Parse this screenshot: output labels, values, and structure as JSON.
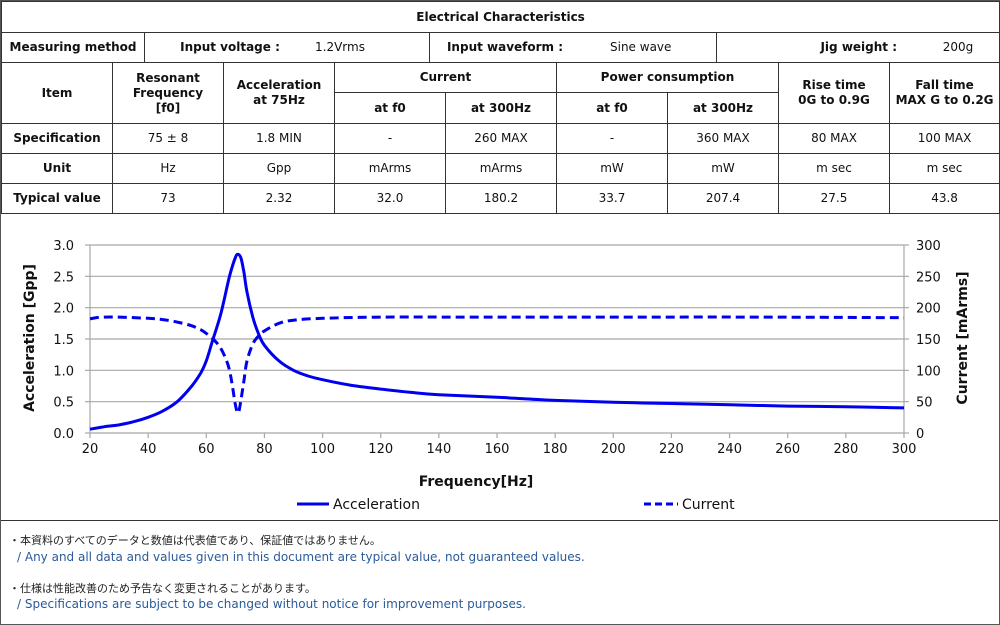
{
  "table": {
    "title": "Electrical Characteristics",
    "measuring_method": {
      "label": "Measuring method",
      "input_voltage_label": "Input voltage :",
      "input_voltage_value": "1.2Vrms",
      "input_waveform_label": "Input waveform :",
      "input_waveform_value": "Sine wave",
      "jig_weight_label": "Jig weight :",
      "jig_weight_value": "200g"
    },
    "headers": {
      "item": "Item",
      "resonant_frequency": [
        "Resonant",
        "Frequency",
        "[f0]"
      ],
      "acceleration": [
        "Acceleration",
        "at 75Hz"
      ],
      "current": "Current",
      "power": "Power consumption",
      "rise_time": [
        "Rise time",
        "0G to 0.9G"
      ],
      "fall_time": [
        "Fall time",
        "MAX G to 0.2G"
      ],
      "sub": [
        "at f0",
        "at 300Hz",
        "at f0",
        "at 300Hz"
      ]
    },
    "rows": [
      {
        "label": "Specification",
        "cells": [
          "75 ± 8",
          "1.8 MIN",
          "-",
          "260 MAX",
          "-",
          "360 MAX",
          "80 MAX",
          "100 MAX"
        ]
      },
      {
        "label": "Unit",
        "cells": [
          "Hz",
          "Gpp",
          "mArms",
          "mArms",
          "mW",
          "mW",
          "m sec",
          "m sec"
        ]
      },
      {
        "label": "Typical value",
        "cells": [
          "73",
          "2.32",
          "32.0",
          "180.2",
          "33.7",
          "207.4",
          "27.5",
          "43.8"
        ]
      }
    ]
  },
  "chart_data": {
    "type": "line",
    "title": "",
    "xlabel": "Frequency[Hz]",
    "ylabel": "Acceleration [Gpp]",
    "y2label": "Current [mArms]",
    "xlim": [
      20,
      300
    ],
    "ylim": [
      0,
      3.0
    ],
    "y2lim": [
      0,
      300
    ],
    "xticks": [
      "20",
      "40",
      "60",
      "80",
      "100",
      "120",
      "140",
      "160",
      "180",
      "200",
      "220",
      "240",
      "260",
      "280",
      "300"
    ],
    "yticks": [
      "0.0",
      "0.5",
      "1.0",
      "1.5",
      "2.0",
      "2.5",
      "3.0"
    ],
    "y2ticks": [
      "0",
      "50",
      "100",
      "150",
      "200",
      "250",
      "300"
    ],
    "grid": true,
    "legend_position": "bottom",
    "series": [
      {
        "name": "Acceleration",
        "axis": "left",
        "style": "solid",
        "color": "#0000ee",
        "x": [
          20,
          25,
          30,
          35,
          40,
          45,
          50,
          55,
          58,
          60,
          62,
          65,
          68,
          70,
          71,
          72,
          73,
          74,
          76,
          78,
          80,
          85,
          90,
          95,
          100,
          110,
          120,
          130,
          140,
          160,
          180,
          200,
          220,
          240,
          260,
          280,
          300
        ],
        "y": [
          0.06,
          0.1,
          0.13,
          0.18,
          0.25,
          0.35,
          0.5,
          0.75,
          0.95,
          1.15,
          1.45,
          1.9,
          2.5,
          2.8,
          2.85,
          2.78,
          2.55,
          2.25,
          1.85,
          1.58,
          1.4,
          1.15,
          1.0,
          0.91,
          0.85,
          0.76,
          0.7,
          0.65,
          0.61,
          0.57,
          0.52,
          0.49,
          0.47,
          0.45,
          0.43,
          0.42,
          0.4
        ]
      },
      {
        "name": "Current",
        "axis": "right",
        "style": "dashed",
        "color": "#0000ee",
        "x": [
          20,
          22,
          25,
          30,
          40,
          45,
          50,
          55,
          58,
          60,
          63,
          65,
          67,
          68,
          69,
          70,
          71,
          72,
          73,
          74,
          76,
          78,
          80,
          85,
          90,
          100,
          120,
          150,
          200,
          250,
          300
        ],
        "y": [
          182,
          184,
          185,
          185,
          183,
          181,
          177,
          171,
          165,
          159,
          147,
          135,
          115,
          100,
          75,
          45,
          32,
          55,
          85,
          115,
          142,
          155,
          163,
          175,
          180,
          183,
          185,
          185,
          185,
          185,
          184
        ]
      }
    ]
  },
  "notes": [
    {
      "jp": "・本資料のすべてのデータと数値は代表値であり、保証値ではありません。",
      "en": "/ Any and all data and values given in this document are typical value, not guaranteed values."
    },
    {
      "jp": "・仕様は性能改善のため予告なく変更されることがあります。",
      "en": "/ Specifications are subject to be changed without notice for improvement purposes."
    }
  ]
}
